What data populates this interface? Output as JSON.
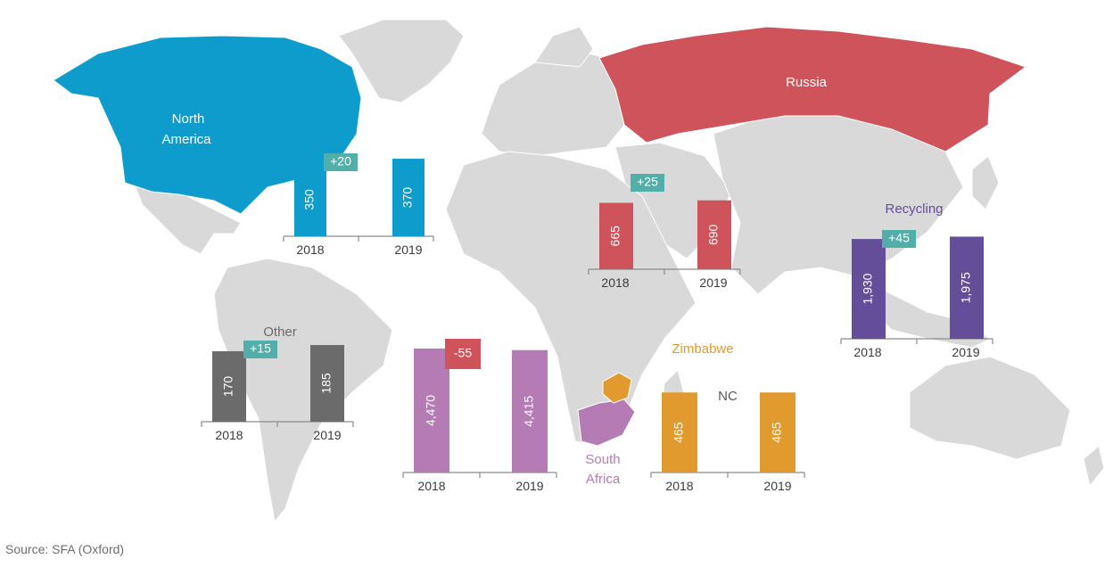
{
  "source_note": "Source: SFA (Oxford)",
  "colors": {
    "land": "#d9d9d9",
    "north_america": "#0d9ccc",
    "russia": "#cf535a",
    "south_africa": "#b47bb5",
    "zimbabwe": "#e19a2e",
    "other": "#6b6b6b",
    "recycling": "#644e9a",
    "delta_positive": "#52aea8",
    "delta_negative": "#cf535a"
  },
  "region_labels": {
    "north_america_line1": "North",
    "north_america_line2": "America",
    "russia": "Russia",
    "other": "Other",
    "recycling": "Recycling",
    "zimbabwe": "Zimbabwe",
    "nc": "NC",
    "south_africa_line1": "South",
    "south_africa_line2": "Africa"
  },
  "chart_data": [
    {
      "type": "bar",
      "region": "North America",
      "categories": [
        "2018",
        "2019"
      ],
      "values": [
        350,
        370
      ],
      "change": "+20",
      "color": "#0d9ccc"
    },
    {
      "type": "bar",
      "region": "Russia",
      "categories": [
        "2018",
        "2019"
      ],
      "values": [
        665,
        690
      ],
      "change": "+25",
      "color": "#cf535a"
    },
    {
      "type": "bar",
      "region": "Recycling",
      "categories": [
        "2018",
        "2019"
      ],
      "values": [
        1930,
        1975
      ],
      "change": "+45",
      "color": "#644e9a"
    },
    {
      "type": "bar",
      "region": "Other",
      "categories": [
        "2018",
        "2019"
      ],
      "values": [
        170,
        185
      ],
      "change": "+15",
      "color": "#6b6b6b"
    },
    {
      "type": "bar",
      "region": "South Africa",
      "categories": [
        "2018",
        "2019"
      ],
      "values": [
        4470,
        4415
      ],
      "change": "-55",
      "color": "#b47bb5"
    },
    {
      "type": "bar",
      "region": "Zimbabwe",
      "categories": [
        "2018",
        "2019"
      ],
      "values": [
        465,
        465
      ],
      "change": "NC",
      "color": "#e19a2e"
    }
  ]
}
